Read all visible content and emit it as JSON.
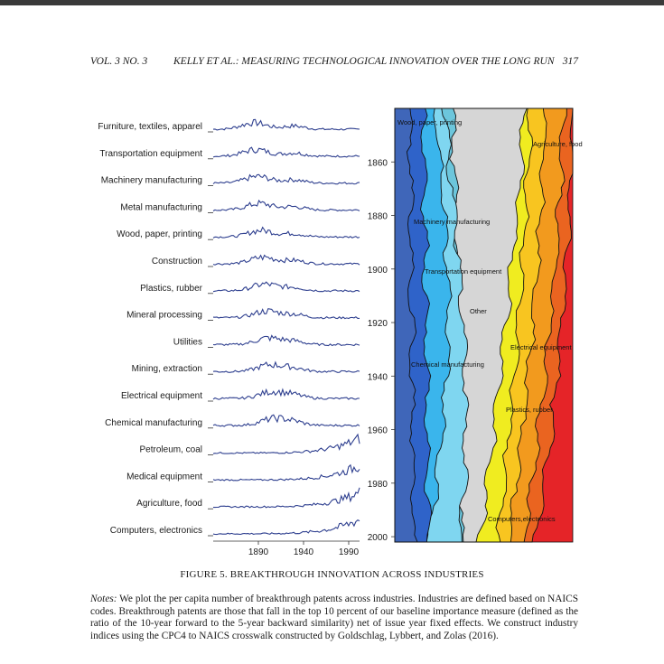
{
  "header": {
    "volume": "VOL. 3 NO. 3",
    "title": "KELLY ET AL.: MEASURING TECHNOLOGICAL INNOVATION OVER THE LONG RUN",
    "page_number": "317"
  },
  "chart_data": [
    {
      "type": "line",
      "series": [
        {
          "name": "Furniture, textiles, apparel"
        },
        {
          "name": "Transportation equipment"
        },
        {
          "name": "Machinery manufacturing"
        },
        {
          "name": "Metal manufacturing"
        },
        {
          "name": "Wood, paper, printing"
        },
        {
          "name": "Construction"
        },
        {
          "name": "Plastics, rubber"
        },
        {
          "name": "Mineral processing"
        },
        {
          "name": "Utilities"
        },
        {
          "name": "Mining, extraction"
        },
        {
          "name": "Electrical equipment"
        },
        {
          "name": "Chemical manufacturing"
        },
        {
          "name": "Petroleum, coal"
        },
        {
          "name": "Medical equipment"
        },
        {
          "name": "Agriculture, food"
        },
        {
          "name": "Computers, electronics"
        }
      ],
      "x_ticks": [
        "1890",
        "1940",
        "1990"
      ],
      "xlim": [
        1840,
        2002
      ],
      "line_color": "#2e3f8f"
    },
    {
      "type": "area",
      "y_ticks": [
        "1860",
        "1880",
        "1900",
        "1920",
        "1940",
        "1960",
        "1980",
        "2000"
      ],
      "ylim": [
        1840,
        2002
      ],
      "labels": [
        {
          "text": "Wood, paper, printing"
        },
        {
          "text": "Agriculture, food"
        },
        {
          "text": "Machinery manufacturing"
        },
        {
          "text": "Transportation equipment"
        },
        {
          "text": "Other"
        },
        {
          "text": "Electrical equipment"
        },
        {
          "text": "Chemical manufacturing"
        },
        {
          "text": "Plastics, rubber"
        },
        {
          "text": "Computers,electronics"
        }
      ],
      "colors": [
        "#3f66b9",
        "#2f63c9",
        "#3ab5ec",
        "#7fd6f0",
        "#6cc6dc",
        "#d6d6d6",
        "#f0ec20",
        "#f8c520",
        "#f29a1e",
        "#ea6420",
        "#e52428"
      ]
    }
  ],
  "figure": {
    "caption": "FIGURE 5. BREAKTHROUGH INNOVATION ACROSS INDUSTRIES",
    "notes_label": "Notes:",
    "notes_text": "We plot the per capita number of breakthrough patents across industries. Industries are defined based on NAICS codes. Breakthrough patents are those that fall in the top 10 percent of our baseline importance measure (defined as the ratio of the 10-year forward to the 5-year backward similarity) net of issue year fixed effects. We construct industry indices using the CPC4 to NAICS crosswalk constructed by Goldschlag, Lybbert, and Zolas (2016)."
  }
}
